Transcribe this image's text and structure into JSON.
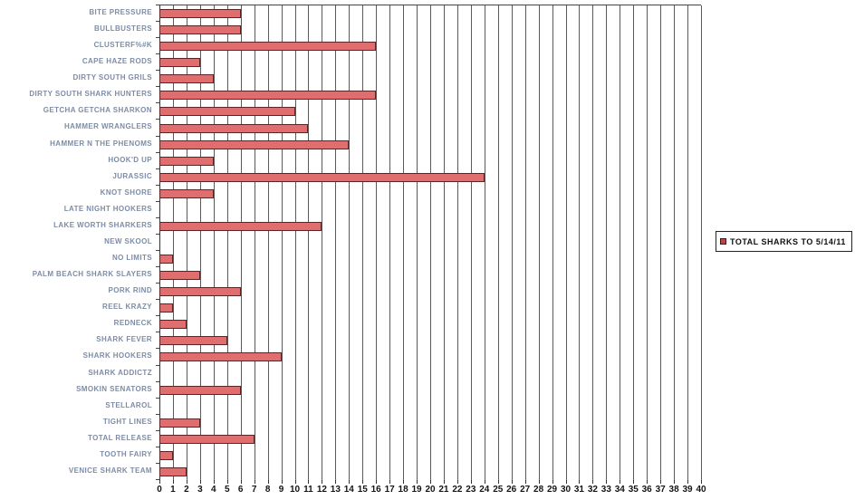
{
  "chart_data": {
    "type": "bar",
    "orientation": "horizontal",
    "title": "",
    "series_name": "TOTAL SHARKS TO 5/14/11",
    "categories": [
      "BITE PRESSURE",
      "BULLBUSTERS",
      "CLUSTERF%#K",
      "CAPE HAZE RODS",
      "DIRTY SOUTH GRILS",
      "DIRTY SOUTH SHARK HUNTERS",
      "GETCHA GETCHA SHARKON",
      "HAMMER WRANGLERS",
      "HAMMER N THE PHENOMS",
      "HOOK'D UP",
      "JURASSIC",
      "KNOT SHORE",
      "LATE NIGHT HOOKERS",
      "LAKE WORTH SHARKERS",
      "NEW SKOOL",
      "NO LIMITS",
      "PALM BEACH SHARK SLAYERS",
      "PORK RIND",
      "REEL KRAZY",
      "REDNECK",
      "SHARK FEVER",
      "SHARK HOOKERS",
      "SHARK ADDICTZ",
      "SMOKIN SENATORS",
      "STELLAROL",
      "TIGHT LINES",
      "TOTAL RELEASE",
      "TOOTH FAIRY",
      "VENICE SHARK TEAM"
    ],
    "values": [
      6,
      6,
      16,
      3,
      4,
      16,
      10,
      11,
      14,
      4,
      24,
      4,
      0,
      12,
      0,
      1,
      3,
      6,
      1,
      2,
      5,
      9,
      0,
      6,
      0,
      3,
      7,
      1,
      2
    ],
    "xlabel": "",
    "ylabel": "",
    "xlim": [
      0,
      40
    ],
    "x_tick_labels": [
      "0",
      "1",
      "2",
      "3",
      "4",
      "5",
      "6",
      "7",
      "8",
      "9",
      "10",
      "11",
      "12",
      "13",
      "14",
      "15",
      "16",
      "17",
      "18",
      "19",
      "20",
      "21",
      "22",
      "23",
      "24",
      "25",
      "26",
      "27",
      "28",
      "29",
      "30",
      "31",
      "32",
      "33",
      "34",
      "35",
      "36",
      "37",
      "38",
      "39",
      "40"
    ],
    "grid": "vertical",
    "legend_position": "right"
  },
  "legend": {
    "label": "TOTAL SHARKS TO 5/14/11"
  },
  "colors": {
    "bar_fill": "#e06e6e",
    "bar_border": "#5c2424",
    "grid_line": "#5a5a5a",
    "axis_line": "#333333",
    "category_label": "#7d8ca6",
    "tick_label": "#141414",
    "legend_marker": "#b34a4a",
    "legend_border": "#222222"
  }
}
